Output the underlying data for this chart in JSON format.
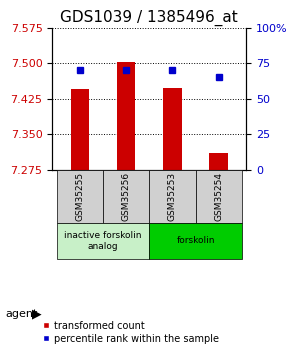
{
  "title": "GDS1039 / 1385496_at",
  "samples": [
    "GSM35255",
    "GSM35256",
    "GSM35253",
    "GSM35254"
  ],
  "bar_values": [
    7.445,
    7.502,
    7.447,
    7.31
  ],
  "bar_base": 7.275,
  "percentile_values": [
    70.0,
    70.5,
    70.0,
    65.0
  ],
  "left_ylim": [
    7.275,
    7.575
  ],
  "right_ylim": [
    0,
    100
  ],
  "left_yticks": [
    7.275,
    7.35,
    7.425,
    7.5,
    7.575
  ],
  "right_yticks": [
    0,
    25,
    50,
    75,
    100
  ],
  "right_yticklabels": [
    "0",
    "25",
    "50",
    "75",
    "100%"
  ],
  "bar_color": "#cc0000",
  "blue_color": "#0000cc",
  "agent_groups": [
    {
      "label": "inactive forskolin\nanalog",
      "samples": [
        0,
        1
      ],
      "color": "#c8f0c8"
    },
    {
      "label": "forskolin",
      "samples": [
        2,
        3
      ],
      "color": "#00cc00"
    }
  ],
  "agent_label": "agent",
  "gridline_color": "#000000",
  "gridline_style": "dotted",
  "sample_box_color": "#d0d0d0",
  "title_fontsize": 11,
  "tick_fontsize": 8,
  "legend_fontsize": 7,
  "bar_width": 0.4
}
